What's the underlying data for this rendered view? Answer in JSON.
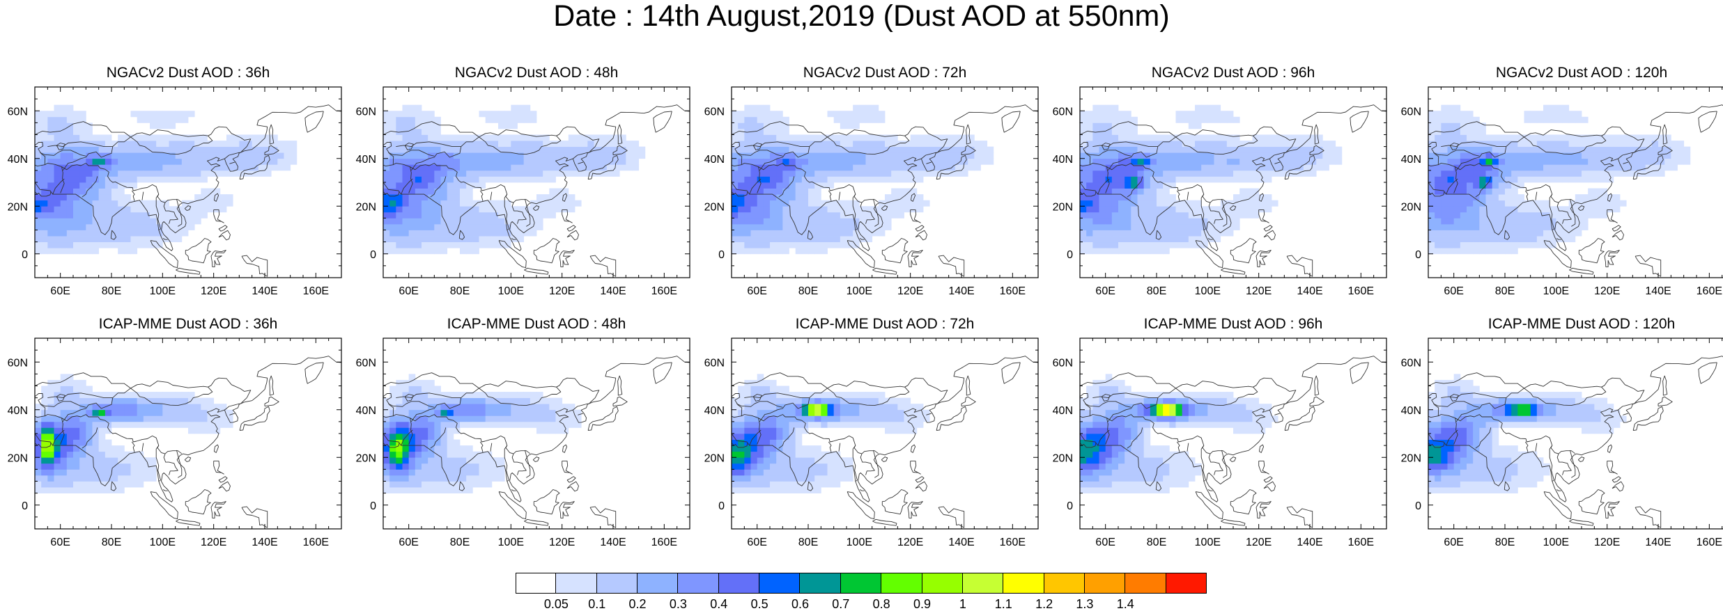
{
  "figure": {
    "title": "Date : 14th August,2019 (Dust AOD at 550nm)"
  },
  "panels": [
    {
      "title": "NGACv2 Dust AOD : 36h",
      "model": "NGACv2",
      "lead": "36h",
      "peak_aod": 0.7
    },
    {
      "title": "NGACv2 Dust AOD : 48h",
      "model": "NGACv2",
      "lead": "48h",
      "peak_aod": 0.6
    },
    {
      "title": "NGACv2 Dust AOD : 72h",
      "model": "NGACv2",
      "lead": "72h",
      "peak_aod": 0.6
    },
    {
      "title": "NGACv2 Dust AOD : 96h",
      "model": "NGACv2",
      "lead": "96h",
      "peak_aod": 0.9
    },
    {
      "title": "NGACv2 Dust AOD : 120h",
      "model": "NGACv2",
      "lead": "120h",
      "peak_aod": 0.8
    },
    {
      "title": "ICAP-MME Dust AOD : 36h",
      "model": "ICAP-MME",
      "lead": "36h",
      "peak_aod": 1.1
    },
    {
      "title": "ICAP-MME Dust AOD : 48h",
      "model": "ICAP-MME",
      "lead": "48h",
      "peak_aod": 0.9
    },
    {
      "title": "ICAP-MME Dust AOD : 72h",
      "model": "ICAP-MME",
      "lead": "72h",
      "peak_aod": 1.2
    },
    {
      "title": "ICAP-MME Dust AOD : 96h",
      "model": "ICAP-MME",
      "lead": "96h",
      "peak_aod": 1.4
    },
    {
      "title": "ICAP-MME Dust AOD : 120h",
      "model": "ICAP-MME",
      "lead": "120h",
      "peak_aod": 1.0
    }
  ],
  "axes": {
    "lon_range": [
      50,
      170
    ],
    "lat_range": [
      -10,
      70
    ],
    "x_ticks": [
      60,
      80,
      100,
      120,
      140,
      160
    ],
    "x_tick_labels": [
      "60E",
      "80E",
      "100E",
      "120E",
      "140E",
      "160E"
    ],
    "y_ticks": [
      0,
      20,
      40,
      60
    ],
    "y_tick_labels": [
      "0",
      "20N",
      "40N",
      "60N"
    ]
  },
  "colorbar": {
    "labels": [
      "0.05",
      "0.1",
      "0.2",
      "0.3",
      "0.4",
      "0.5",
      "0.6",
      "0.7",
      "0.8",
      "0.9",
      "1",
      "1.1",
      "1.2",
      "1.3",
      "1.4"
    ],
    "colors": [
      "#ffffff",
      "#d6e2ff",
      "#b5c9ff",
      "#8eb2ff",
      "#7f96ff",
      "#6370f8",
      "#0063ff",
      "#009696",
      "#00c633",
      "#63ff00",
      "#96ff00",
      "#c6ff33",
      "#ffff00",
      "#ffc600",
      "#ffa000",
      "#ff7c00",
      "#ff1900"
    ]
  }
}
